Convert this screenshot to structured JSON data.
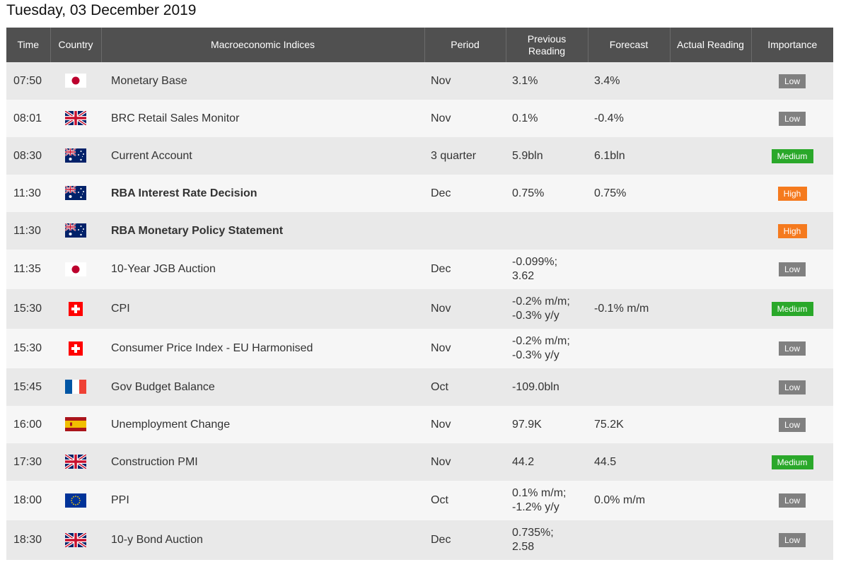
{
  "page": {
    "date_title": "Tuesday, 03 December 2019"
  },
  "table": {
    "headers": {
      "time": "Time",
      "country": "Country",
      "indices": "Macroeconomic Indices",
      "period": "Period",
      "previous_line1": "Previous",
      "previous_line2": "Reading",
      "forecast": "Forecast",
      "actual": "Actual Reading",
      "importance": "Importance"
    },
    "rows": [
      {
        "time": "07:50",
        "country": "japan-flag-icon",
        "name": "Monetary Base",
        "bold": false,
        "period": "Nov",
        "prev_line1": "3.1%",
        "prev_line2": "",
        "forecast": "3.4%",
        "actual": "",
        "importance": "Low"
      },
      {
        "time": "08:01",
        "country": "uk-flag-icon",
        "name": "BRC Retail Sales Monitor",
        "bold": false,
        "period": "Nov",
        "prev_line1": "0.1%",
        "prev_line2": "",
        "forecast": "-0.4%",
        "actual": "",
        "importance": "Low"
      },
      {
        "time": "08:30",
        "country": "australia-flag-icon",
        "name": "Current Account",
        "bold": false,
        "period": "3 quarter",
        "prev_line1": "5.9bln",
        "prev_line2": "",
        "forecast": "6.1bln",
        "actual": "",
        "importance": "Medium"
      },
      {
        "time": "11:30",
        "country": "australia-flag-icon",
        "name": "RBA Interest Rate Decision",
        "bold": true,
        "period": "Dec",
        "prev_line1": "0.75%",
        "prev_line2": "",
        "forecast": "0.75%",
        "actual": "",
        "importance": "High"
      },
      {
        "time": "11:30",
        "country": "australia-flag-icon",
        "name": "RBA Monetary Policy Statement",
        "bold": true,
        "period": "",
        "prev_line1": "",
        "prev_line2": "",
        "forecast": "",
        "actual": "",
        "importance": "High"
      },
      {
        "time": "11:35",
        "country": "japan-flag-icon",
        "name": "10-Year JGB Auction",
        "bold": false,
        "period": "Dec",
        "prev_line1": "-0.099%;",
        "prev_line2": "3.62",
        "forecast": "",
        "actual": "",
        "importance": "Low"
      },
      {
        "time": "15:30",
        "country": "switzerland-flag-icon",
        "name": "CPI",
        "bold": false,
        "period": "Nov",
        "prev_line1": "-0.2% m/m;",
        "prev_line2": "-0.3% y/y",
        "forecast": "-0.1% m/m",
        "actual": "",
        "importance": "Medium"
      },
      {
        "time": "15:30",
        "country": "switzerland-flag-icon",
        "name": "Consumer Price Index - EU Harmonised",
        "bold": false,
        "period": "Nov",
        "prev_line1": "-0.2% m/m;",
        "prev_line2": "-0.3% y/y",
        "forecast": "",
        "actual": "",
        "importance": "Low"
      },
      {
        "time": "15:45",
        "country": "france-flag-icon",
        "name": "Gov Budget Balance",
        "bold": false,
        "period": "Oct",
        "prev_line1": "-109.0bln",
        "prev_line2": "",
        "forecast": "",
        "actual": "",
        "importance": "Low"
      },
      {
        "time": "16:00",
        "country": "spain-flag-icon",
        "name": "Unemployment Change",
        "bold": false,
        "period": "Nov",
        "prev_line1": "97.9K",
        "prev_line2": "",
        "forecast": "75.2K",
        "actual": "",
        "importance": "Low"
      },
      {
        "time": "17:30",
        "country": "uk-flag-icon",
        "name": "Construction PMI",
        "bold": false,
        "period": "Nov",
        "prev_line1": "44.2",
        "prev_line2": "",
        "forecast": "44.5",
        "actual": "",
        "importance": "Medium"
      },
      {
        "time": "18:00",
        "country": "eu-flag-icon",
        "name": "PPI",
        "bold": false,
        "period": "Oct",
        "prev_line1": "0.1% m/m;",
        "prev_line2": "-1.2% y/y",
        "forecast": "0.0% m/m",
        "actual": "",
        "importance": "Low"
      },
      {
        "time": "18:30",
        "country": "uk-flag-icon",
        "name": "10-y Bond Auction",
        "bold": false,
        "period": "Dec",
        "prev_line1": "0.735%;",
        "prev_line2": "2.58",
        "forecast": "",
        "actual": "",
        "importance": "Low"
      }
    ]
  },
  "colors": {
    "header_bg": "#505050",
    "row_odd": "#e9e9e9",
    "row_even": "#f6f6f6",
    "low": "#808080",
    "medium": "#2aa82a",
    "high": "#f57a1e"
  }
}
